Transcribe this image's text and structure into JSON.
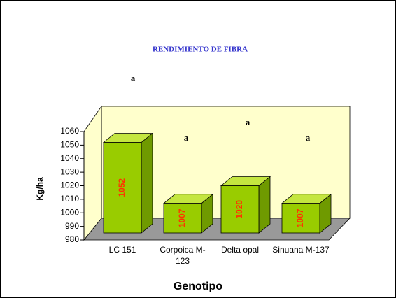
{
  "chart_data": {
    "type": "bar3d",
    "title": "RENDIMIENTO DE FIBRA",
    "categories": [
      "LC 151",
      "Corpoica M-123",
      "Delta opal",
      "Sinuana M-137"
    ],
    "values": [
      1052,
      1007,
      1020,
      1007
    ],
    "annotations": [
      "a",
      "a",
      "a",
      "a"
    ],
    "color": "#99cc00",
    "value_label_color": "#ff3300",
    "ylabel": "Kg/ha",
    "xlabel": "Genotipo",
    "ylim": [
      980,
      1060
    ],
    "yticks": [
      980,
      990,
      1000,
      1010,
      1020,
      1030,
      1040,
      1050,
      1060
    ]
  }
}
